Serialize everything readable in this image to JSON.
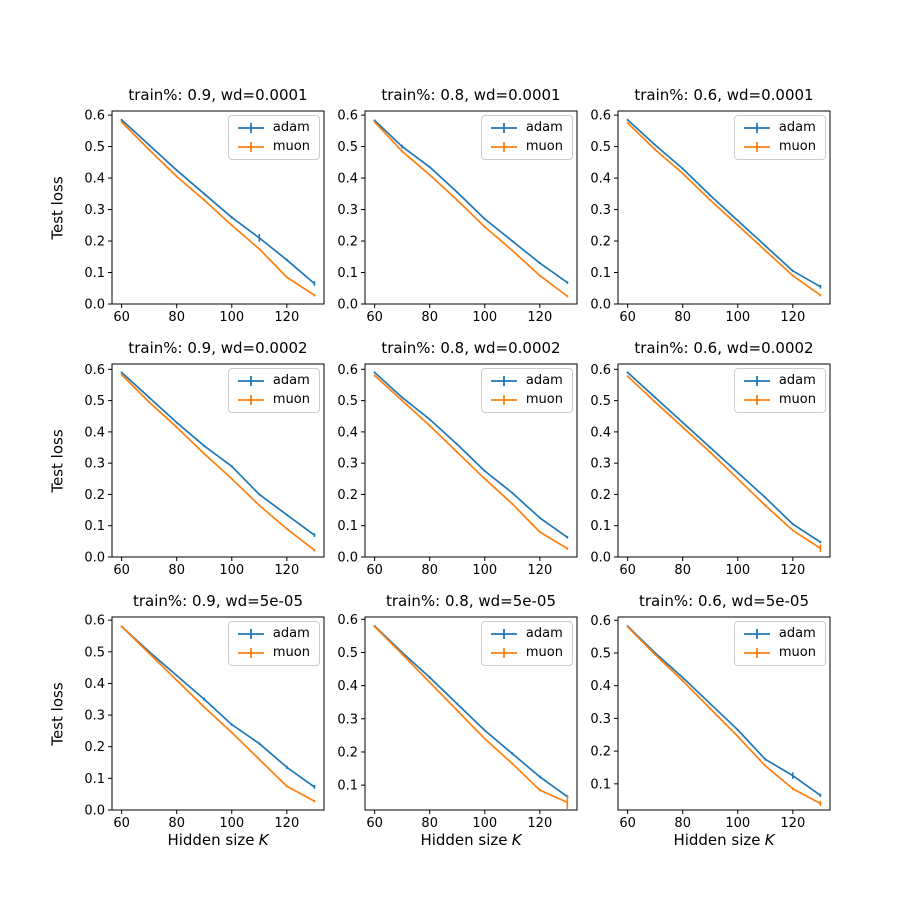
{
  "figure": {
    "background": "#ffffff"
  },
  "axes_labels": {
    "ylabel": "Test loss",
    "xlabel_text": "Hidden size",
    "xlabel_var": "K"
  },
  "colors": {
    "adam": "#1f77b4",
    "muon": "#ff7f0e"
  },
  "chart_data": [
    {
      "type": "line",
      "title": "train%: 0.9, wd=0.0001",
      "x": [
        60,
        70,
        80,
        90,
        100,
        110,
        120,
        130
      ],
      "xlim": [
        56.5,
        133.5
      ],
      "ylim": [
        0.0,
        0.613
      ],
      "xticks": [
        60,
        80,
        100,
        120
      ],
      "yticks": [
        0.0,
        0.1,
        0.2,
        0.3,
        0.4,
        0.5,
        0.6
      ],
      "xlabel": "Hidden size K",
      "ylabel": "Test loss",
      "grid": false,
      "legend_position": "upper right",
      "series": [
        {
          "name": "adam",
          "color_key": "adam",
          "values": [
            0.585,
            0.505,
            0.425,
            0.35,
            0.275,
            0.21,
            0.14,
            0.065
          ],
          "yerr": [
            0.003,
            0.003,
            0.003,
            0.003,
            0.004,
            0.012,
            0.004,
            0.007
          ]
        },
        {
          "name": "muon",
          "color_key": "muon",
          "values": [
            0.578,
            0.49,
            0.405,
            0.33,
            0.25,
            0.175,
            0.085,
            0.028
          ],
          "yerr": [
            0.003,
            0.003,
            0.003,
            0.003,
            0.003,
            0.003,
            0.003,
            0.004
          ]
        }
      ]
    },
    {
      "type": "line",
      "title": "train%: 0.8, wd=0.0001",
      "x": [
        60,
        70,
        80,
        90,
        100,
        110,
        120,
        130
      ],
      "xlim": [
        56.5,
        133.5
      ],
      "ylim": [
        0.0,
        0.613
      ],
      "xticks": [
        60,
        80,
        100,
        120
      ],
      "yticks": [
        0.0,
        0.1,
        0.2,
        0.3,
        0.4,
        0.5,
        0.6
      ],
      "xlabel": "Hidden size K",
      "ylabel": "Test loss",
      "grid": false,
      "legend_position": "upper right",
      "series": [
        {
          "name": "adam",
          "color_key": "adam",
          "values": [
            0.583,
            0.5,
            0.435,
            0.355,
            0.27,
            0.2,
            0.13,
            0.068
          ],
          "yerr": [
            0.003,
            0.006,
            0.003,
            0.003,
            0.003,
            0.003,
            0.003,
            0.004
          ]
        },
        {
          "name": "muon",
          "color_key": "muon",
          "values": [
            0.578,
            0.485,
            0.41,
            0.33,
            0.245,
            0.17,
            0.09,
            0.025
          ],
          "yerr": [
            0.003,
            0.003,
            0.003,
            0.003,
            0.003,
            0.003,
            0.003,
            0.004
          ]
        }
      ]
    },
    {
      "type": "line",
      "title": "train%: 0.6, wd=0.0001",
      "x": [
        60,
        70,
        80,
        90,
        100,
        110,
        120,
        130
      ],
      "xlim": [
        56.5,
        133.5
      ],
      "ylim": [
        0.0,
        0.613
      ],
      "xticks": [
        60,
        80,
        100,
        120
      ],
      "yticks": [
        0.0,
        0.1,
        0.2,
        0.3,
        0.4,
        0.5,
        0.6
      ],
      "xlabel": "Hidden size K",
      "ylabel": "Test loss",
      "grid": false,
      "legend_position": "upper right",
      "series": [
        {
          "name": "adam",
          "color_key": "adam",
          "values": [
            0.585,
            0.505,
            0.43,
            0.345,
            0.265,
            0.185,
            0.105,
            0.055
          ],
          "yerr": [
            0.003,
            0.003,
            0.003,
            0.003,
            0.003,
            0.003,
            0.003,
            0.006
          ]
        },
        {
          "name": "muon",
          "color_key": "muon",
          "values": [
            0.575,
            0.49,
            0.415,
            0.33,
            0.25,
            0.17,
            0.09,
            0.028
          ],
          "yerr": [
            0.003,
            0.003,
            0.003,
            0.003,
            0.003,
            0.003,
            0.003,
            0.004
          ]
        }
      ]
    },
    {
      "type": "line",
      "title": "train%: 0.9, wd=0.0002",
      "x": [
        60,
        70,
        80,
        90,
        100,
        110,
        120,
        130
      ],
      "xlim": [
        56.5,
        133.5
      ],
      "ylim": [
        0.0,
        0.617
      ],
      "xticks": [
        60,
        80,
        100,
        120
      ],
      "yticks": [
        0.0,
        0.1,
        0.2,
        0.3,
        0.4,
        0.5,
        0.6
      ],
      "xlabel": "Hidden size K",
      "ylabel": "Test loss",
      "grid": false,
      "legend_position": "upper right",
      "series": [
        {
          "name": "adam",
          "color_key": "adam",
          "values": [
            0.59,
            0.51,
            0.43,
            0.355,
            0.29,
            0.2,
            0.135,
            0.07
          ],
          "yerr": [
            0.003,
            0.003,
            0.003,
            0.003,
            0.004,
            0.003,
            0.003,
            0.006
          ]
        },
        {
          "name": "muon",
          "color_key": "muon",
          "values": [
            0.583,
            0.495,
            0.415,
            0.33,
            0.25,
            0.165,
            0.09,
            0.022
          ],
          "yerr": [
            0.003,
            0.003,
            0.003,
            0.003,
            0.003,
            0.003,
            0.003,
            0.004
          ]
        }
      ]
    },
    {
      "type": "line",
      "title": "train%: 0.8, wd=0.0002",
      "x": [
        60,
        70,
        80,
        90,
        100,
        110,
        120,
        130
      ],
      "xlim": [
        56.5,
        133.5
      ],
      "ylim": [
        0.0,
        0.617
      ],
      "xticks": [
        60,
        80,
        100,
        120
      ],
      "yticks": [
        0.0,
        0.1,
        0.2,
        0.3,
        0.4,
        0.5,
        0.6
      ],
      "xlabel": "Hidden size K",
      "ylabel": "Test loss",
      "grid": false,
      "legend_position": "upper right",
      "series": [
        {
          "name": "adam",
          "color_key": "adam",
          "values": [
            0.59,
            0.51,
            0.44,
            0.36,
            0.275,
            0.205,
            0.125,
            0.063
          ],
          "yerr": [
            0.003,
            0.003,
            0.003,
            0.003,
            0.003,
            0.003,
            0.003,
            0.004
          ]
        },
        {
          "name": "muon",
          "color_key": "muon",
          "values": [
            0.58,
            0.5,
            0.42,
            0.335,
            0.25,
            0.17,
            0.08,
            0.027
          ],
          "yerr": [
            0.003,
            0.003,
            0.003,
            0.003,
            0.003,
            0.003,
            0.003,
            0.004
          ]
        }
      ]
    },
    {
      "type": "line",
      "title": "train%: 0.6, wd=0.0002",
      "x": [
        60,
        70,
        80,
        90,
        100,
        110,
        120,
        130
      ],
      "xlim": [
        56.5,
        133.5
      ],
      "ylim": [
        0.0,
        0.617
      ],
      "xticks": [
        60,
        80,
        100,
        120
      ],
      "yticks": [
        0.0,
        0.1,
        0.2,
        0.3,
        0.4,
        0.5,
        0.6
      ],
      "xlabel": "Hidden size K",
      "ylabel": "Test loss",
      "grid": false,
      "legend_position": "upper right",
      "series": [
        {
          "name": "adam",
          "color_key": "adam",
          "values": [
            0.59,
            0.51,
            0.43,
            0.35,
            0.27,
            0.19,
            0.105,
            0.048
          ],
          "yerr": [
            0.003,
            0.003,
            0.003,
            0.003,
            0.003,
            0.003,
            0.003,
            0.004
          ]
        },
        {
          "name": "muon",
          "color_key": "muon",
          "values": [
            0.578,
            0.495,
            0.415,
            0.335,
            0.25,
            0.165,
            0.085,
            0.028
          ],
          "yerr": [
            0.003,
            0.003,
            0.003,
            0.003,
            0.003,
            0.004,
            0.003,
            0.012
          ]
        }
      ]
    },
    {
      "type": "line",
      "title": "train%: 0.9, wd=5e-05",
      "x": [
        60,
        70,
        80,
        90,
        100,
        110,
        120,
        130
      ],
      "xlim": [
        56.5,
        133.5
      ],
      "ylim": [
        0.0,
        0.61
      ],
      "xticks": [
        60,
        80,
        100,
        120
      ],
      "yticks": [
        0.0,
        0.1,
        0.2,
        0.3,
        0.4,
        0.5,
        0.6
      ],
      "xlabel": "Hidden size K",
      "ylabel": "Test loss",
      "grid": false,
      "legend_position": "upper right",
      "series": [
        {
          "name": "adam",
          "color_key": "adam",
          "values": [
            0.58,
            0.5,
            0.425,
            0.35,
            0.27,
            0.21,
            0.135,
            0.073
          ],
          "yerr": [
            0.003,
            0.003,
            0.003,
            0.005,
            0.004,
            0.004,
            0.005,
            0.006
          ]
        },
        {
          "name": "muon",
          "color_key": "muon",
          "values": [
            0.58,
            0.495,
            0.41,
            0.325,
            0.245,
            0.16,
            0.075,
            0.028
          ],
          "yerr": [
            0.003,
            0.003,
            0.003,
            0.003,
            0.003,
            0.003,
            0.003,
            0.004
          ]
        }
      ]
    },
    {
      "type": "line",
      "title": "train%: 0.8, wd=5e-05",
      "x": [
        60,
        70,
        80,
        90,
        100,
        110,
        120,
        130
      ],
      "xlim": [
        56.5,
        133.5
      ],
      "ylim": [
        0.025,
        0.607
      ],
      "xticks": [
        60,
        80,
        100,
        120
      ],
      "yticks": [
        0.1,
        0.2,
        0.3,
        0.4,
        0.5,
        0.6
      ],
      "xlabel": "Hidden size K",
      "ylabel": "Test loss",
      "grid": false,
      "legend_position": "upper right",
      "series": [
        {
          "name": "adam",
          "color_key": "adam",
          "values": [
            0.58,
            0.5,
            0.425,
            0.345,
            0.265,
            0.195,
            0.125,
            0.065
          ],
          "yerr": [
            0.003,
            0.003,
            0.004,
            0.003,
            0.003,
            0.004,
            0.004,
            0.005
          ]
        },
        {
          "name": "muon",
          "color_key": "muon",
          "values": [
            0.578,
            0.495,
            0.41,
            0.325,
            0.24,
            0.165,
            0.085,
            0.048
          ],
          "yerr": [
            0.003,
            0.003,
            0.003,
            0.003,
            0.003,
            0.003,
            0.004,
            0.02
          ]
        }
      ]
    },
    {
      "type": "line",
      "title": "train%: 0.6, wd=5e-05",
      "x": [
        60,
        70,
        80,
        90,
        100,
        110,
        120,
        130
      ],
      "xlim": [
        56.5,
        133.5
      ],
      "ylim": [
        0.02,
        0.61
      ],
      "xticks": [
        60,
        80,
        100,
        120
      ],
      "yticks": [
        0.1,
        0.2,
        0.3,
        0.4,
        0.5,
        0.6
      ],
      "xlabel": "Hidden size K",
      "ylabel": "Test loss",
      "grid": false,
      "legend_position": "upper right",
      "series": [
        {
          "name": "adam",
          "color_key": "adam",
          "values": [
            0.582,
            0.5,
            0.425,
            0.345,
            0.265,
            0.175,
            0.125,
            0.065
          ],
          "yerr": [
            0.003,
            0.003,
            0.003,
            0.003,
            0.003,
            0.004,
            0.01,
            0.005
          ]
        },
        {
          "name": "muon",
          "color_key": "muon",
          "values": [
            0.58,
            0.495,
            0.415,
            0.33,
            0.245,
            0.155,
            0.085,
            0.04
          ],
          "yerr": [
            0.003,
            0.003,
            0.003,
            0.003,
            0.003,
            0.003,
            0.004,
            0.008
          ]
        }
      ]
    }
  ]
}
